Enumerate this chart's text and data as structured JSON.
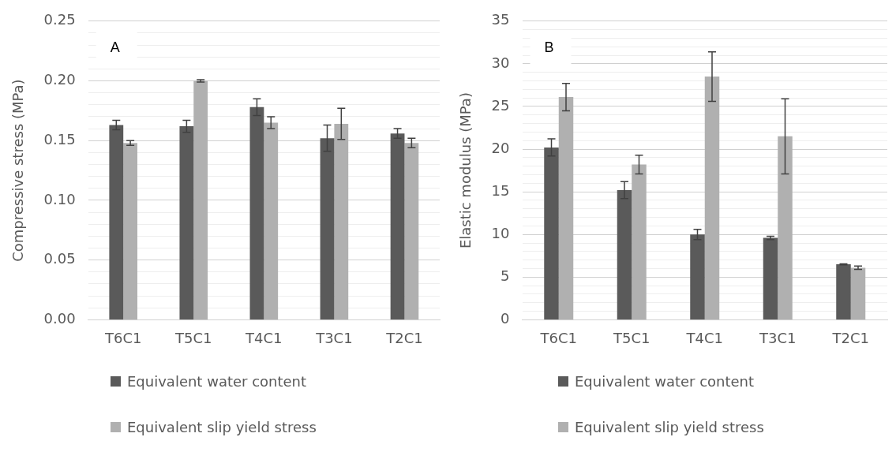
{
  "chart_data": [
    {
      "type": "bar",
      "ylabel": "Compressive stress (MPa)",
      "annotations": [
        "A"
      ],
      "categories": [
        "T6C1",
        "T5C1",
        "T4C1",
        "T3C1",
        "T2C1"
      ],
      "series": [
        {
          "name": "Equivalent water content",
          "color": "#5a5a5a",
          "values": [
            0.163,
            0.162,
            0.178,
            0.152,
            0.156
          ],
          "errors": [
            0.004,
            0.005,
            0.007,
            0.011,
            0.004
          ]
        },
        {
          "name": "Equivalent slip yield stress",
          "color": "#b0b0b0",
          "values": [
            0.148,
            0.2,
            0.165,
            0.164,
            0.148
          ],
          "errors": [
            0.002,
            0.001,
            0.005,
            0.013,
            0.004
          ]
        }
      ],
      "ylim": [
        0,
        0.25
      ],
      "yticks": [
        {
          "value": 0,
          "label": "0.00"
        },
        {
          "value": 0.01,
          "label": null
        },
        {
          "value": 0.02,
          "label": null
        },
        {
          "value": 0.03,
          "label": null
        },
        {
          "value": 0.04,
          "label": null
        },
        {
          "value": 0.05,
          "label": "0.05"
        },
        {
          "value": 0.06,
          "label": null
        },
        {
          "value": 0.07,
          "label": null
        },
        {
          "value": 0.08,
          "label": null
        },
        {
          "value": 0.09,
          "label": null
        },
        {
          "value": 0.1,
          "label": "0.10"
        },
        {
          "value": 0.11,
          "label": null
        },
        {
          "value": 0.12,
          "label": null
        },
        {
          "value": 0.13,
          "label": null
        },
        {
          "value": 0.14,
          "label": null
        },
        {
          "value": 0.15,
          "label": "0.15"
        },
        {
          "value": 0.16,
          "label": null
        },
        {
          "value": 0.17,
          "label": null
        },
        {
          "value": 0.18,
          "label": null
        },
        {
          "value": 0.19,
          "label": null
        },
        {
          "value": 0.2,
          "label": "0.20"
        },
        {
          "value": 0.21,
          "label": null
        },
        {
          "value": 0.22,
          "label": null
        },
        {
          "value": 0.23,
          "label": null
        },
        {
          "value": 0.24,
          "label": null
        },
        {
          "value": 0.25,
          "label": "0.25"
        }
      ],
      "grid": "y",
      "legend": "bottom"
    },
    {
      "type": "bar",
      "ylabel": "Elastic modulus (MPa)",
      "annotations": [
        "B"
      ],
      "categories": [
        "T6C1",
        "T5C1",
        "T4C1",
        "T3C1",
        "T2C1"
      ],
      "series": [
        {
          "name": "Equivalent water content",
          "color": "#5a5a5a",
          "values": [
            20.2,
            15.2,
            10.0,
            9.6,
            6.5
          ],
          "errors": [
            1.0,
            1.0,
            0.6,
            0.2,
            0.05
          ]
        },
        {
          "name": "Equivalent slip yield stress",
          "color": "#b0b0b0",
          "values": [
            26.1,
            18.2,
            28.5,
            21.5,
            6.1
          ],
          "errors": [
            1.6,
            1.1,
            2.9,
            4.4,
            0.2
          ]
        }
      ],
      "ylim": [
        0,
        35
      ],
      "yticks": [
        0,
        {
          "value": 1,
          "label": null
        },
        {
          "value": 2,
          "label": null
        },
        {
          "value": 3,
          "label": null
        },
        {
          "value": 4,
          "label": null
        },
        5,
        {
          "value": 6,
          "label": null
        },
        {
          "value": 7,
          "label": null
        },
        {
          "value": 8,
          "label": null
        },
        {
          "value": 9,
          "label": null
        },
        10,
        {
          "value": 11,
          "label": null
        },
        {
          "value": 12,
          "label": null
        },
        {
          "value": 13,
          "label": null
        },
        {
          "value": 14,
          "label": null
        },
        15,
        {
          "value": 16,
          "label": null
        },
        {
          "value": 17,
          "label": null
        },
        {
          "value": 18,
          "label": null
        },
        {
          "value": 19,
          "label": null
        },
        20,
        {
          "value": 21,
          "label": null
        },
        {
          "value": 22,
          "label": null
        },
        {
          "value": 23,
          "label": null
        },
        {
          "value": 24,
          "label": null
        },
        25,
        {
          "value": 26,
          "label": null
        },
        {
          "value": 27,
          "label": null
        },
        {
          "value": 28,
          "label": null
        },
        {
          "value": 29,
          "label": null
        },
        30,
        {
          "value": 31,
          "label": null
        },
        {
          "value": 32,
          "label": null
        },
        {
          "value": 33,
          "label": null
        },
        {
          "value": 34,
          "label": null
        },
        35
      ],
      "grid": "y",
      "legend": "bottom"
    }
  ]
}
